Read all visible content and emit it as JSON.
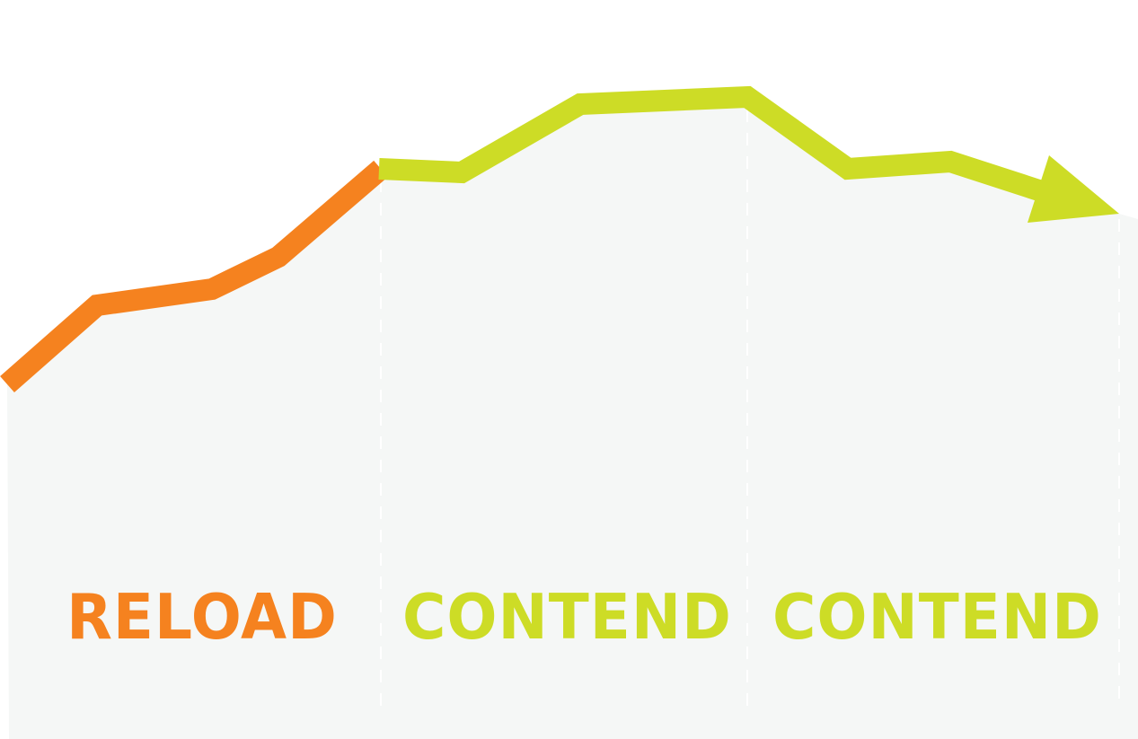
{
  "phases": [
    {
      "label": "RELOAD"
    },
    {
      "label": "CONTEND"
    },
    {
      "label": "CONTEND"
    }
  ],
  "colors": {
    "reload": "#F5821F",
    "contend": "#CDDC26",
    "area": "#F5F7F6",
    "divider": "#FFFFFF"
  },
  "icons": {
    "trend_end": "arrow-head-icon"
  }
}
